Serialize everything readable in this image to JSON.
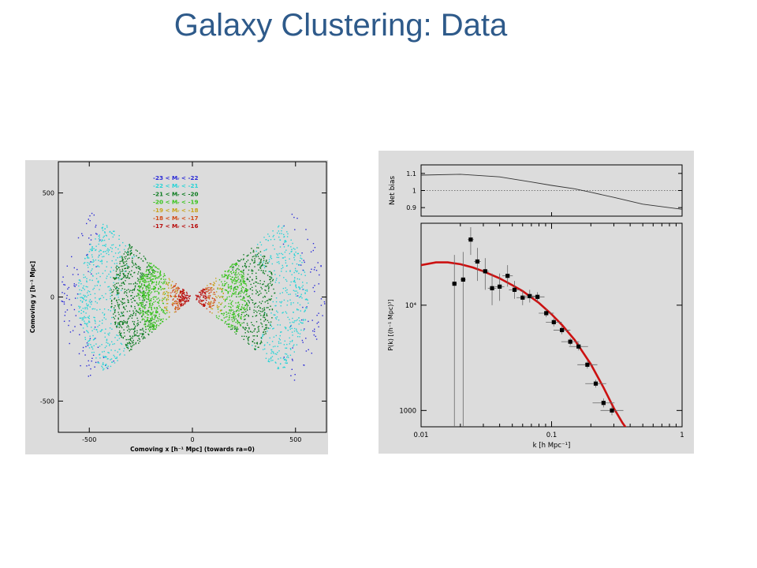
{
  "slide": {
    "title": "Galaxy Clustering: Data"
  },
  "chart_data": [
    {
      "type": "scatter",
      "title": "",
      "xlabel": "Comoving x [h⁻¹ Mpc] (towards ra=0)",
      "ylabel": "Comoving y [h⁻¹ Mpc]",
      "xlim": [
        -650,
        650
      ],
      "ylim": [
        -650,
        650
      ],
      "xticks": [
        "-500",
        "0",
        "500"
      ],
      "yticks": [
        "500",
        "0",
        "-500"
      ],
      "legend_position": "top-center",
      "series": [
        {
          "name": "-23 < Mᵣ < -22",
          "color": "#2b2bd6",
          "rmin": 480,
          "rmax": 640
        },
        {
          "name": "-22 < Mᵣ < -21",
          "color": "#27d3d6",
          "rmin": 340,
          "rmax": 560
        },
        {
          "name": "-21 < Mᵣ < -20",
          "color": "#0a7a1e",
          "rmin": 200,
          "rmax": 400
        },
        {
          "name": "-20 < Mᵣ < -19",
          "color": "#38c41c",
          "rmin": 120,
          "rmax": 270
        },
        {
          "name": "-19 < Mᵣ < -18",
          "color": "#c9a21a",
          "rmin": 70,
          "rmax": 150
        },
        {
          "name": "-18 < Mᵣ < -17",
          "color": "#d24a14",
          "rmin": 40,
          "rmax": 110
        },
        {
          "name": "-17 < Mᵣ < -16",
          "color": "#b80d0d",
          "rmin": 10,
          "rmax": 70
        }
      ]
    },
    {
      "type": "line",
      "title": "",
      "ylabel": "Net bias",
      "xscale": "log",
      "xlim": [
        0.01,
        1
      ],
      "ylim": [
        0.85,
        1.15
      ],
      "yticks": [
        "1.1",
        "1",
        "0.9"
      ],
      "reference_line": 1,
      "x": [
        0.01,
        0.02,
        0.04,
        0.07,
        0.1,
        0.15,
        0.2,
        0.3,
        0.5,
        1
      ],
      "y": [
        1.09,
        1.095,
        1.08,
        1.05,
        1.03,
        1.01,
        0.99,
        0.96,
        0.92,
        0.89
      ]
    },
    {
      "type": "scatter",
      "title": "",
      "xlabel": "k [h Mpc⁻¹]",
      "ylabel": "P(k) [(h⁻¹ Mpc)³]",
      "xscale": "log",
      "yscale": "log",
      "xlim": [
        0.01,
        1
      ],
      "ylim": [
        700,
        60000
      ],
      "xticks": [
        "0.01",
        "0.1",
        "1"
      ],
      "yticks": [
        "10⁴",
        "1000"
      ],
      "points": [
        {
          "k": 0.018,
          "p": 16000,
          "lo": 700,
          "hi": 30000
        },
        {
          "k": 0.021,
          "p": 17500,
          "lo": 700,
          "hi": 32000
        },
        {
          "k": 0.024,
          "p": 42000,
          "lo": 30000,
          "hi": 55000
        },
        {
          "k": 0.027,
          "p": 26000,
          "lo": 17000,
          "hi": 35000
        },
        {
          "k": 0.031,
          "p": 21000,
          "lo": 14000,
          "hi": 28000
        },
        {
          "k": 0.035,
          "p": 14500,
          "lo": 10000,
          "hi": 20000
        },
        {
          "k": 0.04,
          "p": 15000,
          "lo": 11000,
          "hi": 20000
        },
        {
          "k": 0.046,
          "p": 19000,
          "lo": 15000,
          "hi": 24000
        },
        {
          "k": 0.052,
          "p": 14000,
          "lo": 11500,
          "hi": 17000
        },
        {
          "k": 0.06,
          "p": 11800,
          "lo": 10000,
          "hi": 13800
        },
        {
          "k": 0.068,
          "p": 12200,
          "lo": 10600,
          "hi": 14000
        },
        {
          "k": 0.078,
          "p": 12000,
          "lo": 10800,
          "hi": 13300
        },
        {
          "k": 0.091,
          "p": 8400,
          "lo": 7700,
          "hi": 9200
        },
        {
          "k": 0.104,
          "p": 6900,
          "lo": 6300,
          "hi": 7500
        },
        {
          "k": 0.12,
          "p": 5800,
          "lo": 5300,
          "hi": 6300
        },
        {
          "k": 0.139,
          "p": 4500,
          "lo": 4150,
          "hi": 4880
        },
        {
          "k": 0.161,
          "p": 4050,
          "lo": 3720,
          "hi": 4400
        },
        {
          "k": 0.188,
          "p": 2720,
          "lo": 2500,
          "hi": 2950
        },
        {
          "k": 0.218,
          "p": 1800,
          "lo": 1650,
          "hi": 1960
        },
        {
          "k": 0.25,
          "p": 1180,
          "lo": 1070,
          "hi": 1300
        },
        {
          "k": 0.29,
          "p": 1000,
          "lo": 900,
          "hi": 1100
        }
      ],
      "model_curve": {
        "color": "#cc1111",
        "x": [
          0.01,
          0.013,
          0.016,
          0.02,
          0.025,
          0.03,
          0.04,
          0.05,
          0.06,
          0.08,
          0.1,
          0.12,
          0.15,
          0.2,
          0.25,
          0.3,
          0.35,
          0.38
        ],
        "y": [
          24000,
          25500,
          25500,
          24500,
          22800,
          21000,
          18000,
          15500,
          13600,
          10500,
          8200,
          6500,
          4700,
          2750,
          1650,
          1050,
          760,
          660
        ]
      }
    }
  ]
}
